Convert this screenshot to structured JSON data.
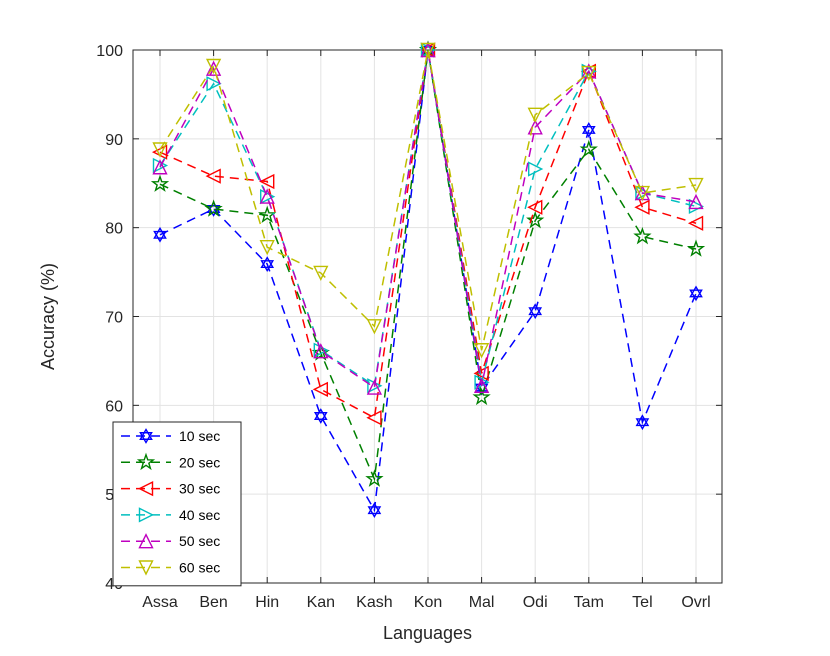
{
  "chart_data": {
    "type": "line",
    "title": "",
    "xlabel": "Languages",
    "ylabel": "Accuracy (%)",
    "categories": [
      "Assa",
      "Ben",
      "Hin",
      "Kan",
      "Kash",
      "Kon",
      "Mal",
      "Odi",
      "Tam",
      "Tel",
      "Ovrl"
    ],
    "ylim": [
      40,
      100
    ],
    "yticks": [
      40,
      50,
      60,
      70,
      80,
      90,
      100
    ],
    "grid": true,
    "legend_position": "bottom-left",
    "series": [
      {
        "name": "10 sec",
        "color": "#0000ff",
        "marker": "hexagram",
        "values": [
          79.2,
          82.1,
          75.9,
          58.8,
          48.2,
          100,
          62.0,
          70.6,
          91.0,
          58.1,
          72.6
        ]
      },
      {
        "name": "20 sec",
        "color": "#008000",
        "marker": "pentagram",
        "values": [
          84.9,
          82.1,
          81.4,
          65.9,
          51.7,
          100,
          60.9,
          80.8,
          88.8,
          79.0,
          77.6
        ]
      },
      {
        "name": "30 sec",
        "color": "#ff0000",
        "marker": "triangle-left",
        "values": [
          88.5,
          85.8,
          85.2,
          61.8,
          58.6,
          100,
          63.6,
          82.3,
          97.6,
          82.3,
          80.5
        ]
      },
      {
        "name": "40 sec",
        "color": "#00bfbf",
        "marker": "triangle-right",
        "values": [
          87.0,
          96.2,
          83.5,
          66.2,
          62.2,
          100,
          62.6,
          86.6,
          97.6,
          83.9,
          82.4
        ]
      },
      {
        "name": "50 sec",
        "color": "#bf00bf",
        "marker": "triangle-up",
        "values": [
          86.8,
          97.9,
          83.5,
          66.1,
          62.0,
          100,
          62.2,
          91.3,
          97.6,
          83.9,
          82.9
        ]
      },
      {
        "name": "60 sec",
        "color": "#bfbf00",
        "marker": "triangle-down",
        "values": [
          88.8,
          98.2,
          77.8,
          74.9,
          68.9,
          100,
          66.2,
          92.7,
          97.4,
          83.9,
          84.8
        ]
      }
    ]
  }
}
